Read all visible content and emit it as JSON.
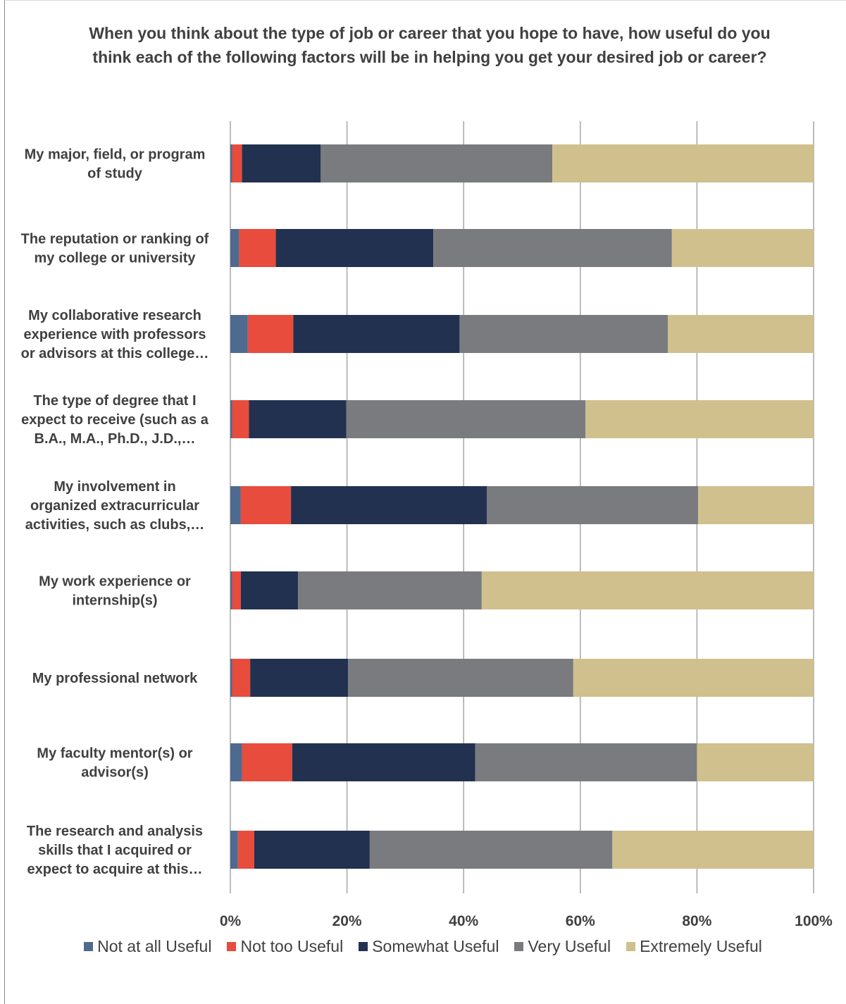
{
  "chart_data": {
    "type": "bar",
    "orientation": "horizontal",
    "stacked": "percent",
    "title": "When you think about the type of job or career that you hope to have, how useful do you think each of the following factors will be in helping you get your desired job or career?",
    "categories": [
      [
        "My major, field, or program",
        "of study"
      ],
      [
        "The reputation or ranking of",
        "my college or university"
      ],
      [
        "My collaborative research",
        "experience with professors",
        "or advisors at this college…"
      ],
      [
        "The type of degree that I",
        "expect to receive (such as a",
        "B.A., M.A., Ph.D., J.D.,…"
      ],
      [
        "My involvement in",
        "organized extracurricular",
        "activities, such as clubs,…"
      ],
      [
        "My work experience or",
        "internship(s)"
      ],
      [
        "My professional network"
      ],
      [
        "My faculty mentor(s) or",
        "advisor(s)"
      ],
      [
        "The research and analysis",
        "skills that I acquired or",
        "expect to acquire at this…"
      ]
    ],
    "series": [
      {
        "name": "Not at all Useful",
        "color": "#4f6a8f",
        "values": [
          0.3,
          1.5,
          3.0,
          0.3,
          1.8,
          0.3,
          0.3,
          2.0,
          1.3
        ]
      },
      {
        "name": "Not too Useful",
        "color": "#e84c3d",
        "values": [
          1.7,
          6.3,
          7.8,
          2.9,
          8.6,
          1.5,
          3.1,
          8.6,
          2.8
        ]
      },
      {
        "name": "Somewhat Useful",
        "color": "#22314f",
        "values": [
          13.5,
          27.0,
          28.5,
          16.7,
          33.6,
          9.8,
          16.8,
          31.4,
          19.8
        ]
      },
      {
        "name": "Very Useful",
        "color": "#7a7b7f",
        "values": [
          39.7,
          40.9,
          35.7,
          41.0,
          36.2,
          31.5,
          38.6,
          38.0,
          41.6
        ]
      },
      {
        "name": "Extremely Useful",
        "color": "#cfc08e",
        "values": [
          44.8,
          24.3,
          25.0,
          39.1,
          19.8,
          56.9,
          41.2,
          20.0,
          34.5
        ]
      }
    ],
    "xlim": [
      0,
      100
    ],
    "xticks": [
      "0%",
      "20%",
      "40%",
      "60%",
      "80%",
      "100%"
    ],
    "grid": "vertical",
    "legend_position": "bottom"
  }
}
